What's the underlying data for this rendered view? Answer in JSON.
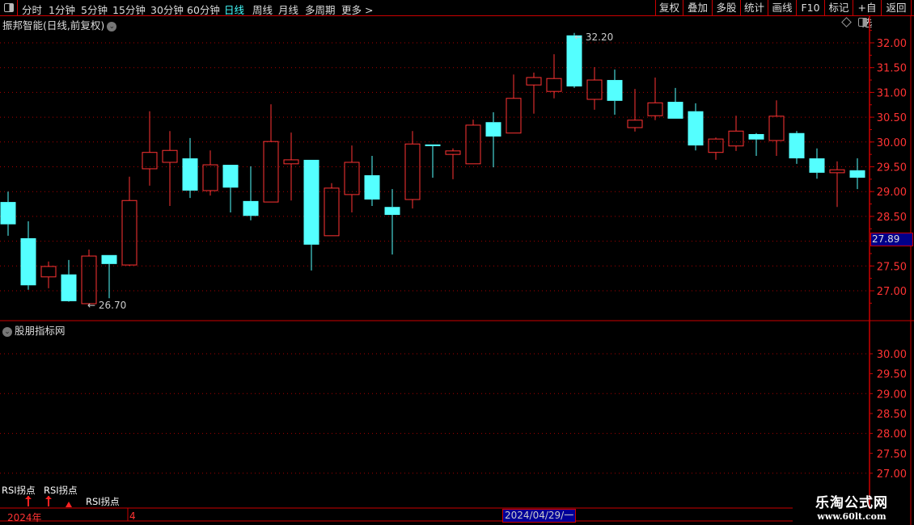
{
  "toolbar": {
    "periods": [
      "分时",
      "1分钟",
      "5分钟",
      "15分钟",
      "30分钟",
      "60分钟",
      "日线",
      "周线",
      "月线",
      "多周期",
      "更多 >"
    ],
    "active_period": "日线",
    "buttons": [
      "复权",
      "叠加",
      "多股",
      "统计",
      "画线",
      "F10",
      "标记",
      "+自选",
      "返回"
    ]
  },
  "main_pane": {
    "title": "振邦智能(日线,前复权)",
    "high_label": "32.20",
    "low_label": "26.70",
    "cursor_price": "27.89"
  },
  "lower_pane": {
    "title": "股朋指标网",
    "y_ticks": [
      "30.00",
      "29.50",
      "29.00",
      "28.50",
      "28.00",
      "27.50",
      "27.00"
    ],
    "signals": [
      "RSI拐点",
      "RSI拐点",
      "RSI拐点"
    ]
  },
  "date_bar": {
    "year": "2024年",
    "month": "4",
    "cursor_date": "2024/04/29/一"
  },
  "watermark": {
    "name": "乐淘公式网",
    "url": "www.60lt.com"
  },
  "colors": {
    "up": "#ff3333",
    "down": "#54ffff",
    "grid": "#aa0000",
    "background": "#000000"
  },
  "chart_data": {
    "type": "candlestick",
    "y_ticks": [
      "32.00",
      "31.50",
      "31.00",
      "30.50",
      "30.00",
      "29.50",
      "29.00",
      "28.50",
      "27.50",
      "27.00"
    ],
    "ylim": [
      26.5,
      32.3
    ],
    "ohlc": [
      [
        28.79,
        29.0,
        28.11,
        28.34
      ],
      [
        28.06,
        28.4,
        27.02,
        27.11
      ],
      [
        27.28,
        27.59,
        27.05,
        27.49
      ],
      [
        27.33,
        27.62,
        26.78,
        26.79
      ],
      [
        26.74,
        27.83,
        26.7,
        27.7
      ],
      [
        27.72,
        27.72,
        26.85,
        27.54
      ],
      [
        27.52,
        29.3,
        27.5,
        28.82
      ],
      [
        29.46,
        30.62,
        29.12,
        29.79
      ],
      [
        29.59,
        30.22,
        28.71,
        29.83
      ],
      [
        29.67,
        30.08,
        28.87,
        29.02
      ],
      [
        29.02,
        29.83,
        28.92,
        29.54
      ],
      [
        29.54,
        29.54,
        28.58,
        29.08
      ],
      [
        28.81,
        29.51,
        28.42,
        28.51
      ],
      [
        28.79,
        30.76,
        28.79,
        30.01
      ],
      [
        29.56,
        30.19,
        28.82,
        29.64
      ],
      [
        29.64,
        29.64,
        27.41,
        27.93
      ],
      [
        28.11,
        29.17,
        28.11,
        29.07
      ],
      [
        28.94,
        29.93,
        28.58,
        29.59
      ],
      [
        29.33,
        29.72,
        28.71,
        28.84
      ],
      [
        28.69,
        29.05,
        27.73,
        28.53
      ],
      [
        28.84,
        30.22,
        28.66,
        29.96
      ],
      [
        29.95,
        29.95,
        29.28,
        29.92
      ],
      [
        29.75,
        29.87,
        29.25,
        29.82
      ],
      [
        29.56,
        30.45,
        29.56,
        30.34
      ],
      [
        30.4,
        30.6,
        29.49,
        30.11
      ],
      [
        30.18,
        31.36,
        30.18,
        30.88
      ],
      [
        31.15,
        31.4,
        30.57,
        31.3
      ],
      [
        31.02,
        31.77,
        30.88,
        31.28
      ],
      [
        32.15,
        32.2,
        31.09,
        31.12
      ],
      [
        30.86,
        31.51,
        30.65,
        31.25
      ],
      [
        31.25,
        31.46,
        30.55,
        30.83
      ],
      [
        30.29,
        31.07,
        30.21,
        30.44
      ],
      [
        30.53,
        31.3,
        30.44,
        30.79
      ],
      [
        30.81,
        31.09,
        30.47,
        30.47
      ],
      [
        30.62,
        30.78,
        29.83,
        29.93
      ],
      [
        29.79,
        30.09,
        29.64,
        30.06
      ],
      [
        29.92,
        30.53,
        29.82,
        30.22
      ],
      [
        30.16,
        30.18,
        29.72,
        30.05
      ],
      [
        30.03,
        30.84,
        29.72,
        30.52
      ],
      [
        30.18,
        30.22,
        29.56,
        29.67
      ],
      [
        29.67,
        29.87,
        29.26,
        29.38
      ],
      [
        29.38,
        29.61,
        28.69,
        29.44
      ],
      [
        29.43,
        29.67,
        29.05,
        29.28
      ]
    ]
  }
}
